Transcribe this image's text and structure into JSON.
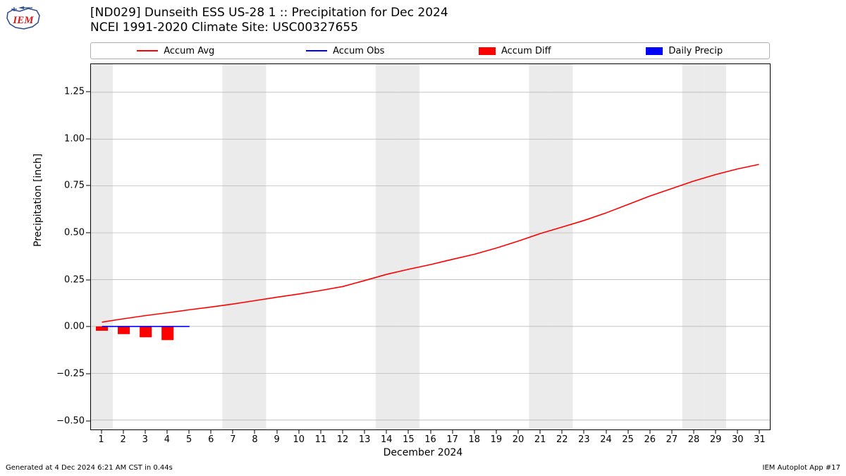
{
  "logo": {
    "text": "IEM",
    "text_color": "#d01f1f",
    "outline_color": "#2b4a8a"
  },
  "titles": {
    "line1": "[ND029] Dunseith ESS US-28 1 :: Precipitation for Dec 2024",
    "line2": "NCEI 1991-2020 Climate Site: USC00327655",
    "fontsize": 17
  },
  "legend": {
    "items": [
      {
        "label": "Accum Avg",
        "type": "line",
        "color": "#ff0000"
      },
      {
        "label": "Accum Obs",
        "type": "line",
        "color": "#0000ff"
      },
      {
        "label": "Accum Diff",
        "type": "block",
        "color": "#ff0000"
      },
      {
        "label": "Daily Precip",
        "type": "block",
        "color": "#0000ff"
      }
    ],
    "border_color": "#b0b0b0",
    "fontsize": 13
  },
  "chart": {
    "type": "mixed",
    "xlim": [
      0.5,
      31.5
    ],
    "ylim": [
      -0.55,
      1.4
    ],
    "x_ticks": [
      1,
      2,
      3,
      4,
      5,
      6,
      7,
      8,
      9,
      10,
      11,
      12,
      13,
      14,
      15,
      16,
      17,
      18,
      19,
      20,
      21,
      22,
      23,
      24,
      25,
      26,
      27,
      28,
      29,
      30,
      31
    ],
    "y_ticks": [
      -0.5,
      -0.25,
      0.0,
      0.25,
      0.5,
      0.75,
      1.0,
      1.25
    ],
    "y_tick_labels": [
      "−0.50",
      "−0.25",
      "0.00",
      "0.25",
      "0.50",
      "0.75",
      "1.00",
      "1.25"
    ],
    "ylabel": "Precipitation [inch]",
    "xlabel": "December 2024",
    "grid_color": "#b0b0b0",
    "grid_width": 0.7,
    "background_color": "#ffffff",
    "weekend_band_color": "#ebebeb",
    "weekend_days": [
      1,
      7,
      8,
      14,
      15,
      21,
      22,
      28,
      29
    ],
    "line_width": 1.6,
    "bar_width": 0.55,
    "accum_avg": {
      "color": "#ff0000",
      "x": [
        1,
        2,
        3,
        4,
        5,
        6,
        7,
        8,
        9,
        10,
        11,
        12,
        13,
        14,
        15,
        16,
        17,
        18,
        19,
        20,
        21,
        22,
        23,
        24,
        25,
        26,
        27,
        28,
        29,
        30,
        31
      ],
      "y": [
        0.023,
        0.041,
        0.058,
        0.073,
        0.089,
        0.104,
        0.12,
        0.138,
        0.156,
        0.173,
        0.192,
        0.213,
        0.245,
        0.278,
        0.305,
        0.33,
        0.358,
        0.385,
        0.418,
        0.455,
        0.495,
        0.53,
        0.565,
        0.605,
        0.65,
        0.695,
        0.735,
        0.775,
        0.81,
        0.84,
        0.865
      ]
    },
    "accum_obs": {
      "color": "#0000ff",
      "x": [
        1,
        2,
        3,
        4,
        5
      ],
      "y": [
        0,
        0,
        0,
        0,
        0
      ]
    },
    "accum_diff": {
      "color": "#ff0000",
      "x": [
        1,
        2,
        3,
        4
      ],
      "y": [
        -0.023,
        -0.041,
        -0.058,
        -0.073
      ]
    },
    "daily_precip": {
      "color": "#0000ff",
      "x": [
        1,
        2,
        3,
        4
      ],
      "y": [
        0,
        0,
        0,
        0
      ]
    },
    "label_fontsize": 14,
    "tick_fontsize": 13
  },
  "footer": {
    "left": "Generated at 4 Dec 2024 6:21 AM CST in 0.44s",
    "right": "IEM Autoplot App #17",
    "fontsize": 10
  }
}
